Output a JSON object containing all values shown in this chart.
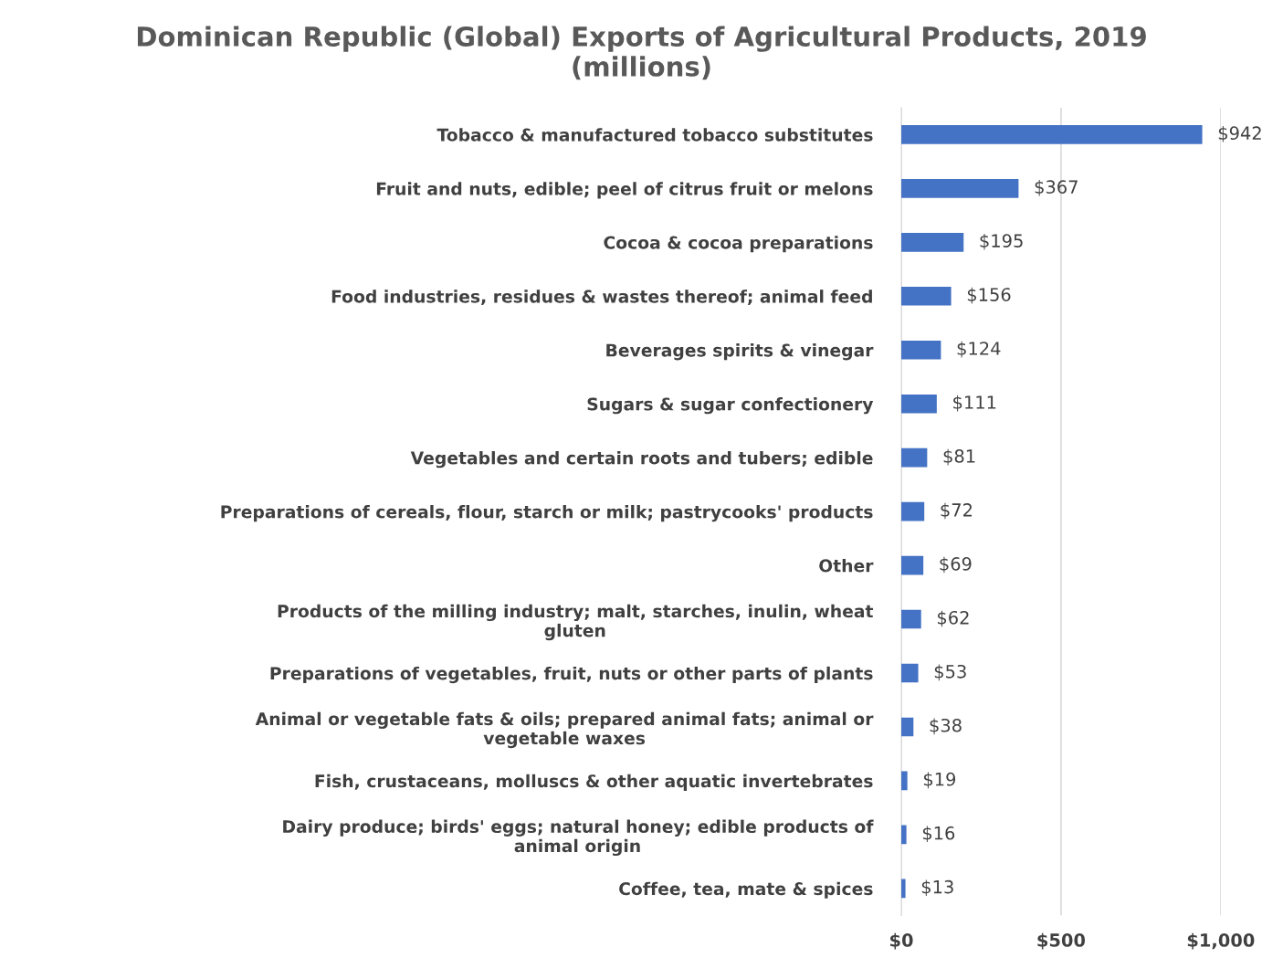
{
  "chart_data": {
    "type": "bar",
    "orientation": "horizontal",
    "title": "Dominican Republic (Global) Exports of Agricultural Products, 2019\n(millions)",
    "categories": [
      "Tobacco & manufactured tobacco substitutes",
      "Fruit and nuts, edible; peel of citrus fruit or melons",
      "Cocoa & cocoa preparations",
      "Food industries, residues & wastes thereof; animal feed",
      "Beverages spirits & vinegar",
      "Sugars & sugar confectionery",
      "Vegetables and certain roots and tubers; edible",
      "Preparations of cereals, flour, starch or milk; pastrycooks' products",
      "Other",
      "Products of the milling industry; malt, starches, inulin, wheat\ngluten",
      "Preparations of vegetables, fruit, nuts or other parts of plants",
      "Animal or vegetable fats & oils; prepared animal fats; animal or\nvegetable waxes",
      "Fish, crustaceans, molluscs & other aquatic invertebrates",
      "Dairy produce; birds' eggs; natural honey; edible products of\nanimal origin",
      "Coffee, tea, mate & spices"
    ],
    "values": [
      942,
      367,
      195,
      156,
      124,
      111,
      81,
      72,
      69,
      62,
      53,
      38,
      19,
      16,
      13
    ],
    "value_labels": [
      "$942",
      "$367",
      "$195",
      "$156",
      "$124",
      "$111",
      "$81",
      "$72",
      "$69",
      "$62",
      "$53",
      "$38",
      "$19",
      "$16",
      "$13"
    ],
    "color": "#4472c4",
    "xlim": [
      0,
      1000
    ],
    "xticks": [
      {
        "value": 0,
        "label": "$0"
      },
      {
        "value": 500,
        "label": "$500"
      },
      {
        "value": 1000,
        "label": "$1,000"
      }
    ],
    "grid": "x",
    "legend": false
  }
}
